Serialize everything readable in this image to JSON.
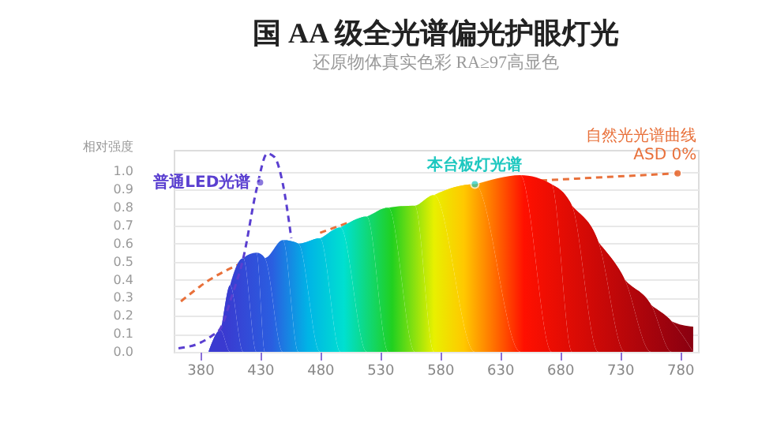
{
  "chart_data": {
    "type": "area",
    "title": "国 AA 级全光谱偏光护眼灯光",
    "subtitle": "还原物体真实色彩  RA≥97高显色",
    "ylabel": "相对强度",
    "xlim": [
      358,
      795
    ],
    "xticks": [
      380,
      430,
      480,
      530,
      580,
      630,
      680,
      730,
      780
    ],
    "ylim": [
      0,
      1.12
    ],
    "yticks": [
      {
        "value": 0,
        "label": "0.0"
      },
      0.1,
      0.2,
      0.3,
      0.4,
      0.5,
      0.6,
      0.7,
      0.8,
      0.9,
      {
        "value": 1,
        "label": "1.0"
      }
    ],
    "grid": "y",
    "series": [
      {
        "type": "line",
        "line_style": "dashed",
        "color": "#e8703a",
        "x": [
          364,
          388,
          414,
          454,
          480,
          505,
          560,
          600,
          635,
          664,
          720,
          778
        ],
        "values": [
          0.28,
          0.4,
          0.49,
          null,
          0.66,
          0.72,
          null,
          null,
          null,
          0.95,
          0.97,
          0.99
        ]
      },
      {
        "color": "#ff1000",
        "x": [
          387,
          397,
          405,
          416,
          427,
          434,
          449,
          462,
          480,
          497,
          519,
          537,
          559,
          575,
          609,
          647,
          673,
          690,
          712,
          734,
          756,
          773,
          791
        ],
        "values": [
          0,
          0.12,
          0.37,
          0.52,
          0.55,
          0.52,
          0.62,
          0.6,
          0.63,
          0.69,
          0.75,
          0.8,
          0.81,
          0.87,
          0.93,
          0.98,
          0.93,
          0.81,
          0.61,
          0.4,
          0.26,
          0.17,
          0.14
        ]
      },
      {
        "type": "line",
        "line_style": "dashed",
        "color": "#5a3fd0",
        "x": [
          362,
          380,
          390,
          397,
          406,
          416,
          427,
          436,
          442,
          449,
          456
        ],
        "values": [
          0.02,
          0.05,
          0.09,
          0.13,
          0.3,
          0.52,
          0.9,
          1.1,
          1.08,
          0.93,
          0.63
        ]
      }
    ],
    "annotations": [
      {
        "text": "普通LED光谱",
        "x": 430,
        "y": 0.94
      },
      {
        "text": "本台板灯光谱",
        "x": 609,
        "y": 0.93
      },
      {
        "text": "自然光光谱曲线",
        "x": 778,
        "y": 0.99
      },
      {
        "text": "ASD 0%",
        "x": 778,
        "y": 0.99
      }
    ]
  }
}
